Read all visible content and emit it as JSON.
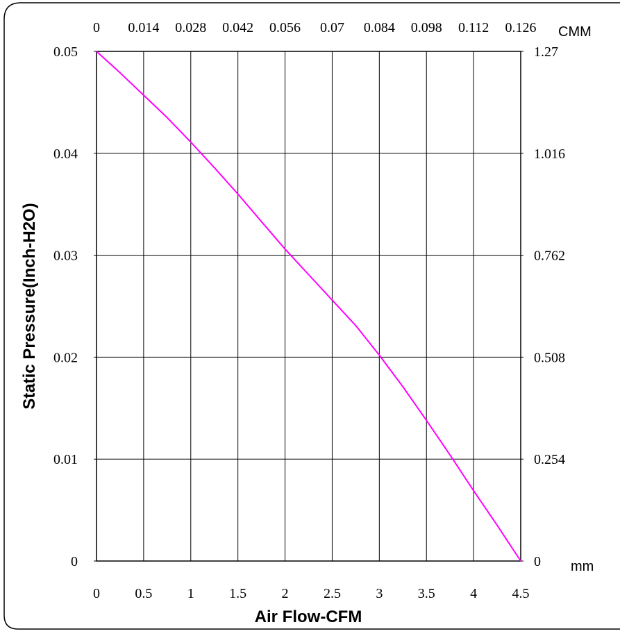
{
  "chart_data": {
    "type": "line",
    "title": "",
    "xlabel": "Air Flow-CFM",
    "ylabel": "Static Pressure(Inch-H2O)",
    "x_unit_top": "CMM",
    "y_unit_right": "mm",
    "xlim": [
      0,
      4.5
    ],
    "ylim": [
      0,
      0.05
    ],
    "grid": true,
    "x_ticks": [
      "0",
      "0.5",
      "1",
      "1.5",
      "2",
      "2.5",
      "3",
      "3.5",
      "4",
      "4.5"
    ],
    "x_ticks_top": [
      "0",
      "0.014",
      "0.028",
      "0.042",
      "0.056",
      "0.07",
      "0.084",
      "0.098",
      "0.112",
      "0.126"
    ],
    "y_ticks": [
      "0",
      "0.01",
      "0.02",
      "0.03",
      "0.04",
      "0.05"
    ],
    "y_ticks_right": [
      "0",
      "0.254",
      "0.508",
      "0.762",
      "1.016",
      "1.27"
    ],
    "series": [
      {
        "color": "#ff00ff",
        "x": [
          0,
          0.25,
          0.5,
          0.75,
          1.0,
          1.25,
          1.5,
          1.75,
          2.0,
          2.25,
          2.5,
          2.75,
          3.0,
          3.25,
          3.5,
          3.75,
          4.0,
          4.25,
          4.5
        ],
        "y": [
          0.05,
          0.0479,
          0.0457,
          0.0435,
          0.0411,
          0.0386,
          0.036,
          0.0333,
          0.0306,
          0.0281,
          0.0256,
          0.0231,
          0.0202,
          0.0171,
          0.0138,
          0.0104,
          0.0069,
          0.0035,
          0.0
        ]
      }
    ]
  }
}
